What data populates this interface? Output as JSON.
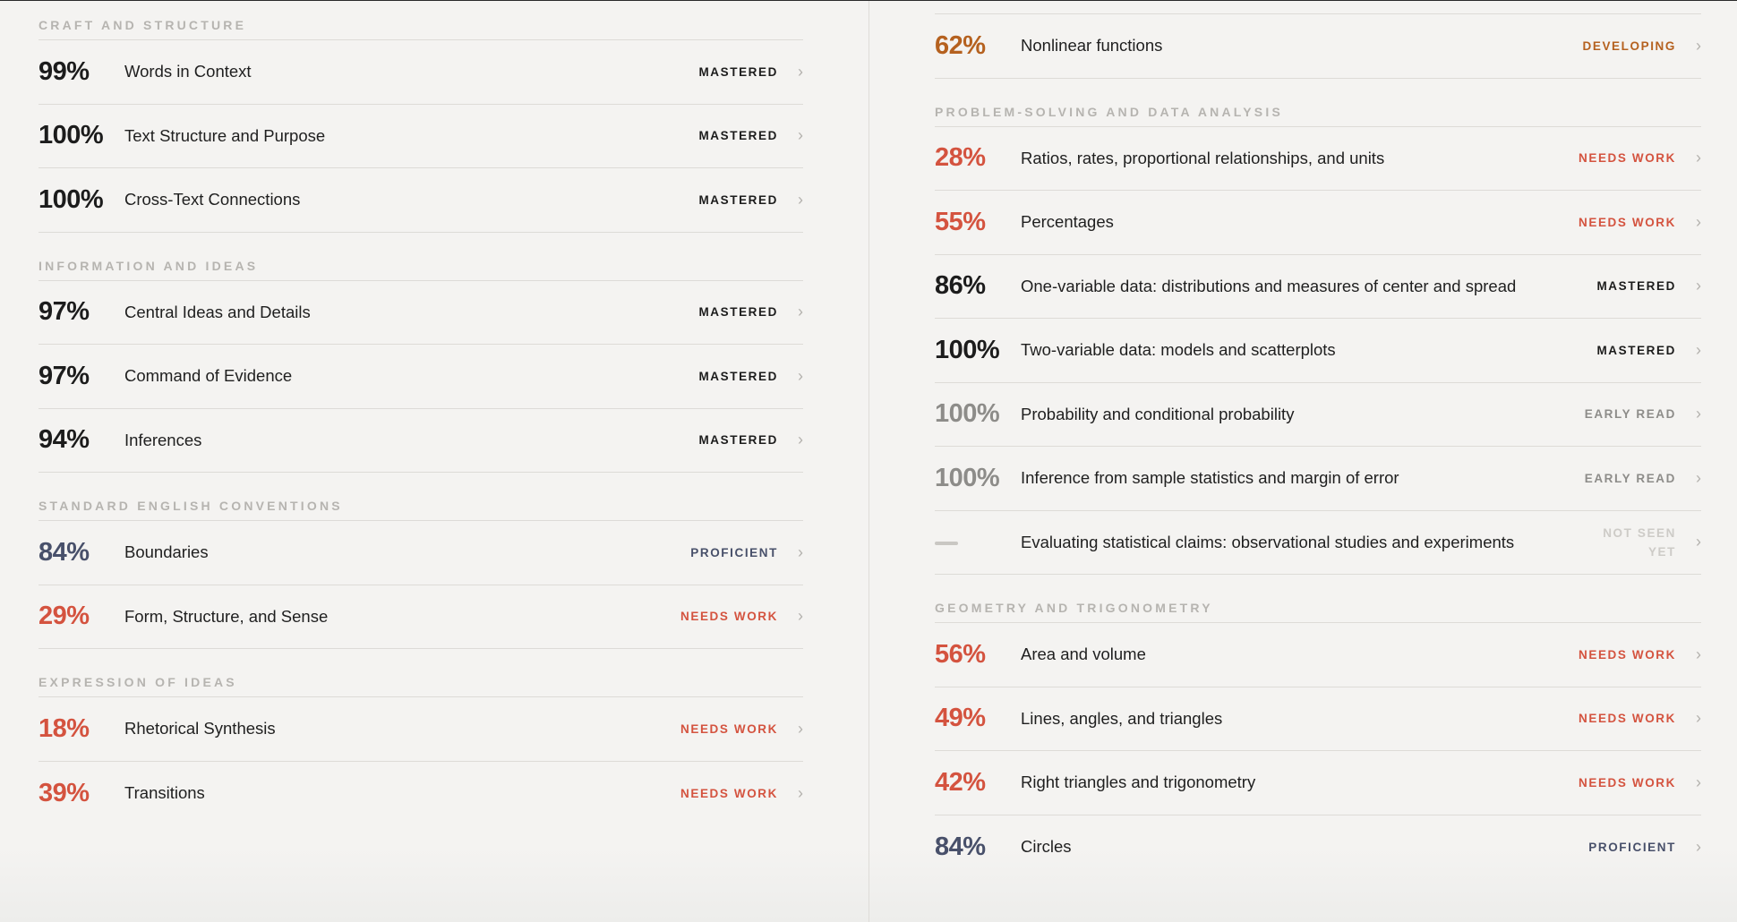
{
  "colors": {
    "mastered": "#1c1c1c",
    "needs_work": "#d4533f",
    "proficient": "#48506a",
    "developing": "#b5611f",
    "early_read": "#8d8c89",
    "not_seen": "#cdcbc7"
  },
  "left": {
    "sections": [
      {
        "title": "CRAFT AND STRUCTURE",
        "rows": [
          {
            "pct": "99%",
            "name": "Words in Context",
            "status": "MASTERED",
            "tone": "dark"
          },
          {
            "pct": "100%",
            "name": "Text Structure and Purpose",
            "status": "MASTERED",
            "tone": "dark"
          },
          {
            "pct": "100%",
            "name": "Cross-Text Connections",
            "status": "MASTERED",
            "tone": "dark"
          }
        ]
      },
      {
        "title": "INFORMATION AND IDEAS",
        "rows": [
          {
            "pct": "97%",
            "name": "Central Ideas and Details",
            "status": "MASTERED",
            "tone": "dark"
          },
          {
            "pct": "97%",
            "name": "Command of Evidence",
            "status": "MASTERED",
            "tone": "dark"
          },
          {
            "pct": "94%",
            "name": "Inferences",
            "status": "MASTERED",
            "tone": "dark"
          }
        ]
      },
      {
        "title": "STANDARD ENGLISH CONVENTIONS",
        "rows": [
          {
            "pct": "84%",
            "name": "Boundaries",
            "status": "PROFICIENT",
            "tone": "slate"
          },
          {
            "pct": "29%",
            "name": "Form, Structure, and Sense",
            "status": "NEEDS WORK",
            "tone": "red"
          }
        ]
      },
      {
        "title": "EXPRESSION OF IDEAS",
        "rows": [
          {
            "pct": "18%",
            "name": "Rhetorical Synthesis",
            "status": "NEEDS WORK",
            "tone": "red"
          },
          {
            "pct": "39%",
            "name": "Transitions",
            "status": "NEEDS WORK",
            "tone": "red"
          }
        ]
      }
    ]
  },
  "right": {
    "sections": [
      {
        "title": "",
        "rows": [
          {
            "pct": "62%",
            "name": "Nonlinear functions",
            "status": "DEVELOPING",
            "tone": "orange"
          }
        ]
      },
      {
        "title": "PROBLEM-SOLVING AND DATA ANALYSIS",
        "rows": [
          {
            "pct": "28%",
            "name": "Ratios, rates, proportional relationships, and units",
            "status": "NEEDS WORK",
            "tone": "red"
          },
          {
            "pct": "55%",
            "name": "Percentages",
            "status": "NEEDS WORK",
            "tone": "red"
          },
          {
            "pct": "86%",
            "name": "One-variable data: distributions and measures of center and spread",
            "status": "MASTERED",
            "tone": "dark"
          },
          {
            "pct": "100%",
            "name": "Two-variable data: models and scatterplots",
            "status": "MASTERED",
            "tone": "dark"
          },
          {
            "pct": "100%",
            "name": "Probability and conditional probability",
            "status": "EARLY READ",
            "tone": "gray"
          },
          {
            "pct": "100%",
            "name": "Inference from sample statistics and margin of error",
            "status": "EARLY READ",
            "tone": "gray"
          },
          {
            "pct": "",
            "name": "Evaluating statistical claims: observational studies and experiments",
            "status": "NOT SEEN YET",
            "tone": "light"
          }
        ]
      },
      {
        "title": "GEOMETRY AND TRIGONOMETRY",
        "rows": [
          {
            "pct": "56%",
            "name": "Area and volume",
            "status": "NEEDS WORK",
            "tone": "red"
          },
          {
            "pct": "49%",
            "name": "Lines, angles, and triangles",
            "status": "NEEDS WORK",
            "tone": "red"
          },
          {
            "pct": "42%",
            "name": "Right triangles and trigonometry",
            "status": "NEEDS WORK",
            "tone": "red"
          },
          {
            "pct": "84%",
            "name": "Circles",
            "status": "PROFICIENT",
            "tone": "slate"
          }
        ]
      }
    ]
  }
}
